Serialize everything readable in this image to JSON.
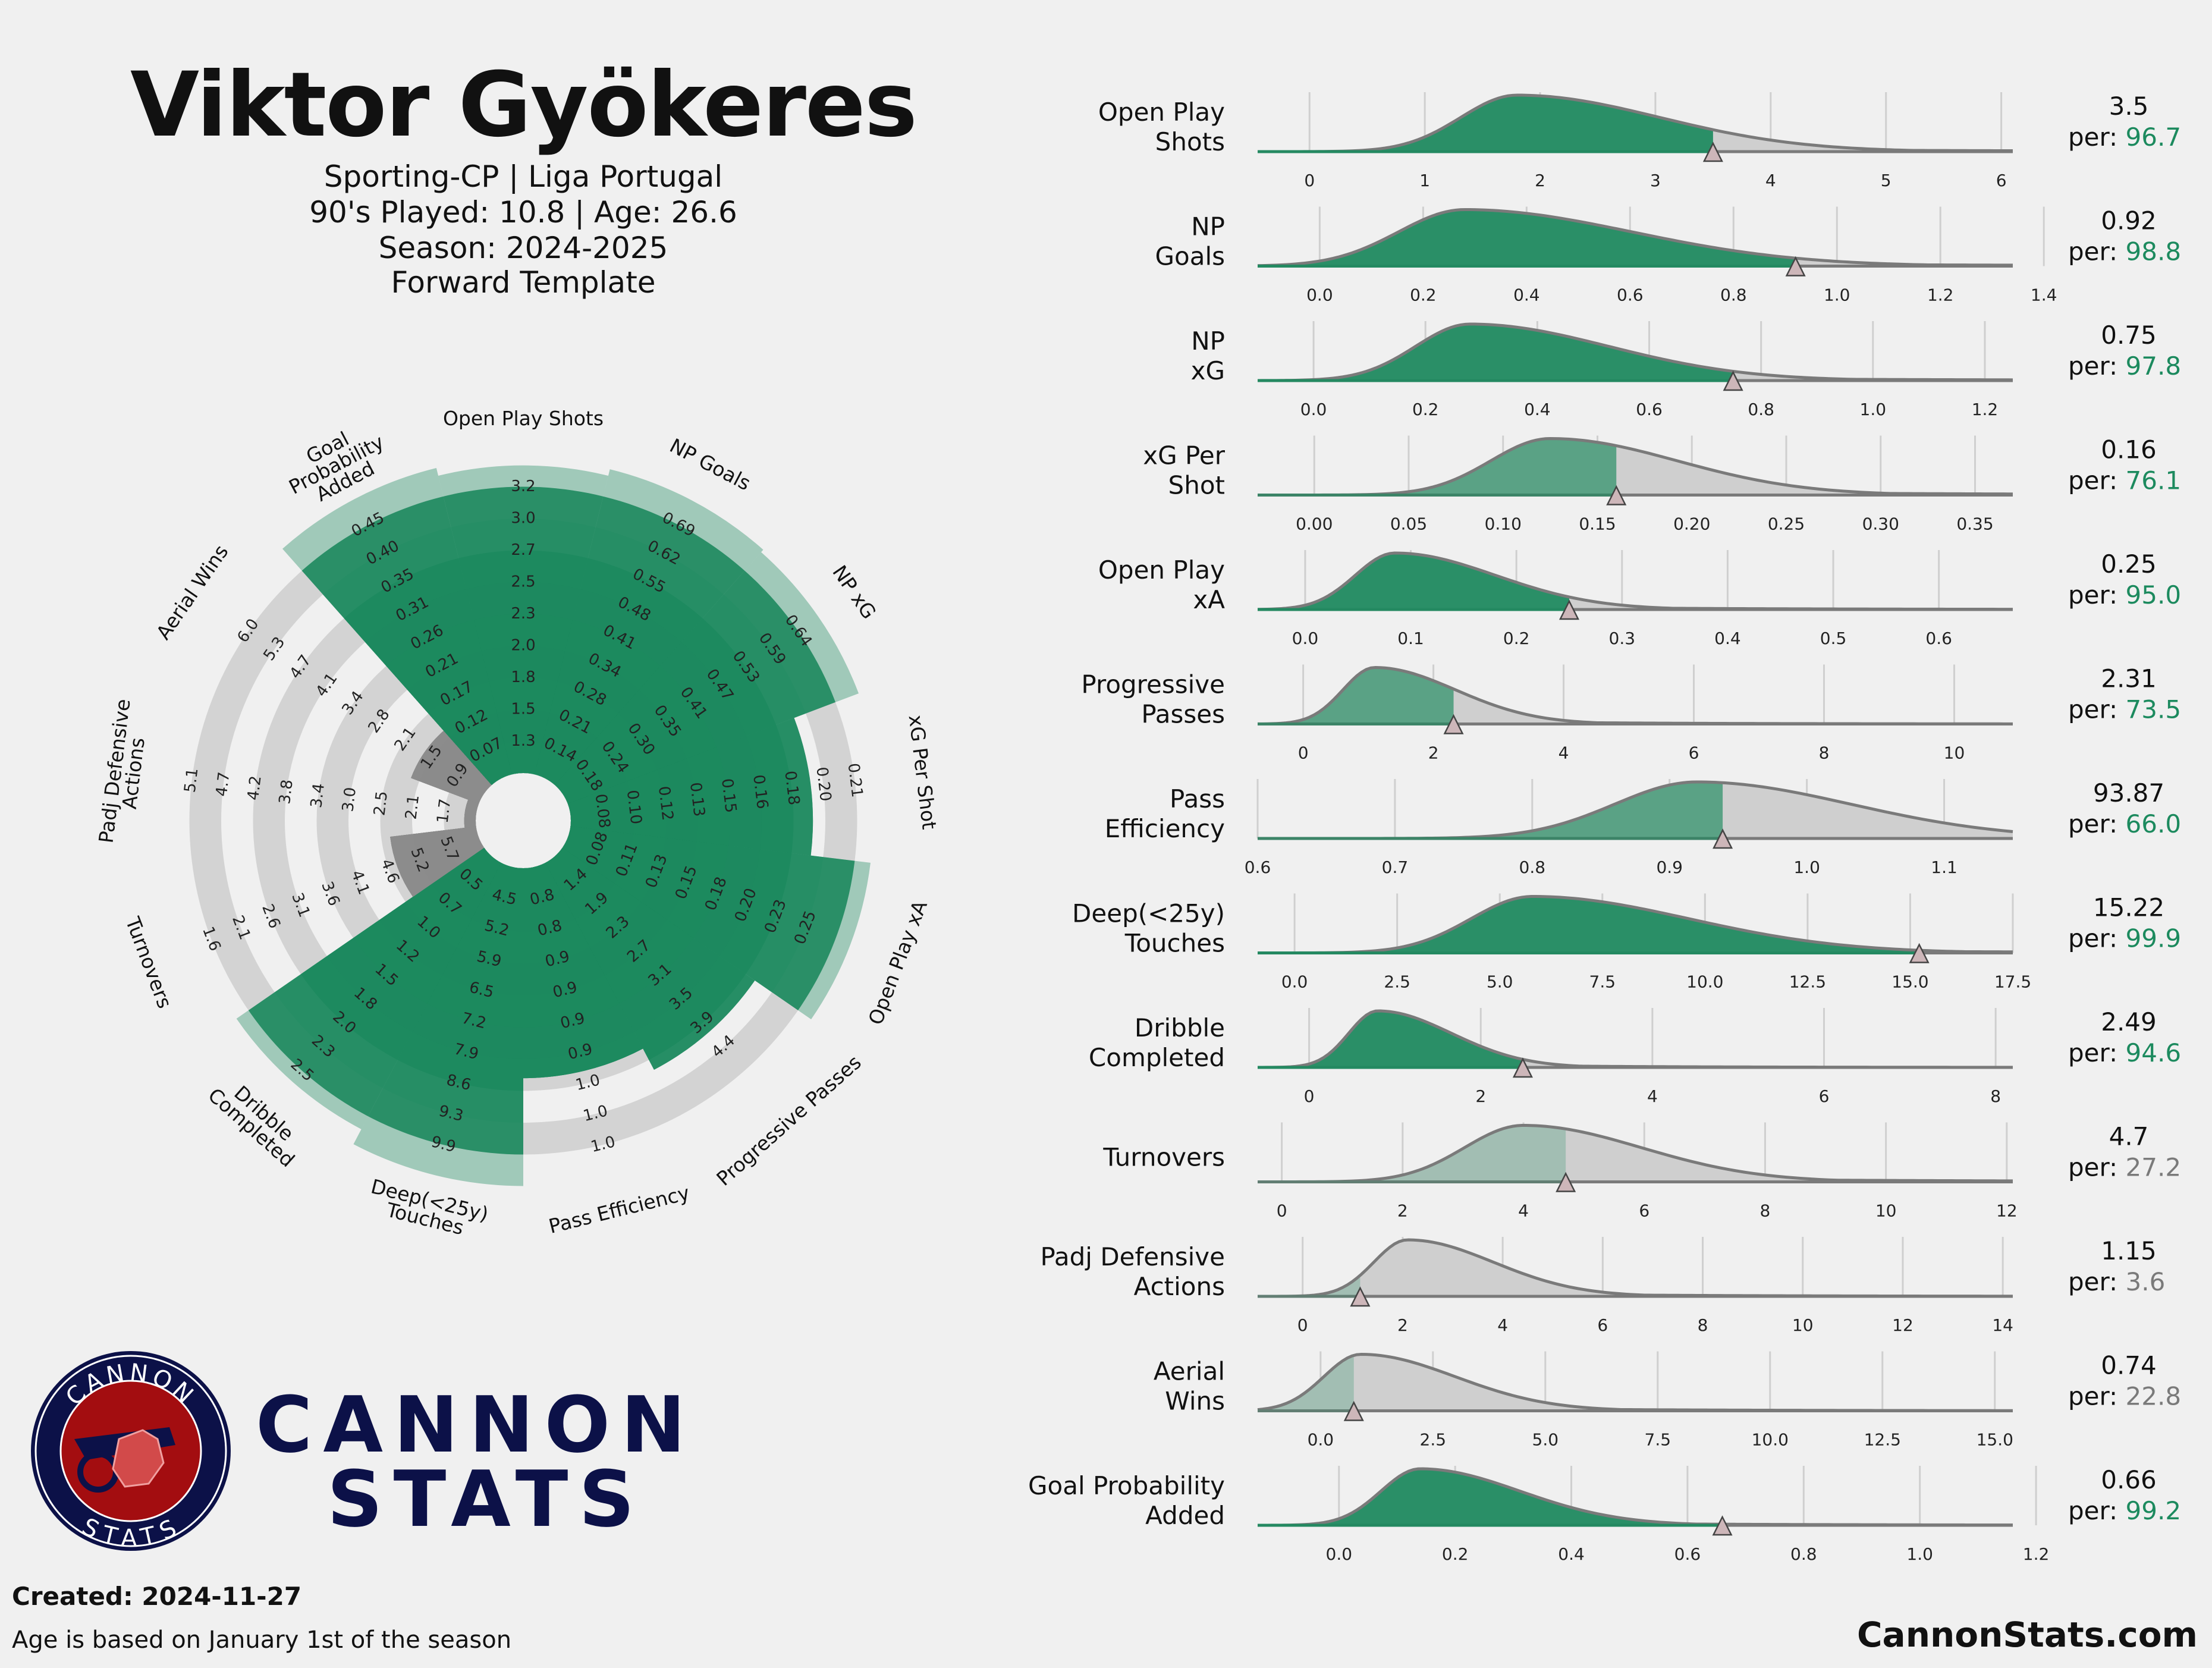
{
  "header": {
    "player": "Viktor Gyökeres",
    "line1": "Sporting-CP | Liga Portugal",
    "line2": "90's Played: 10.8 | Age: 26.6",
    "line3": "Season: 2024-2025",
    "line4": "Forward Template"
  },
  "brand": {
    "word1": "CANNON",
    "word2": "STATS",
    "badge_top": "CANNON",
    "badge_bottom": "STATS",
    "navy": "#0c1148",
    "red": "#a30d10"
  },
  "footer": {
    "created": "Created: 2024-11-27",
    "note": "Age is based on January 1st of the season",
    "site": "CannonStats.com"
  },
  "colors": {
    "good": "#1c8a5e",
    "neutral": "#8c8c8c",
    "ring": "#d3d3d3",
    "marker": "#cdb6b9"
  },
  "chart_data": [
    {
      "type": "radar",
      "percentile_scale": [
        0,
        100
      ],
      "axes": [
        {
          "label": "Open Play Shots",
          "percentile": 96.7,
          "ticks": [
            "1.3",
            "1.5",
            "1.8",
            "2.0",
            "2.3",
            "2.5",
            "2.7",
            "3.0",
            "3.2"
          ]
        },
        {
          "label": "NP Goals",
          "percentile": 98.8,
          "ticks": [
            "0.14",
            "0.21",
            "0.28",
            "0.34",
            "0.41",
            "0.48",
            "0.55",
            "0.62",
            "0.69"
          ]
        },
        {
          "label": "NP xG",
          "percentile": 97.8,
          "ticks": [
            "0.18",
            "0.24",
            "0.30",
            "0.35",
            "0.41",
            "0.47",
            "0.53",
            "0.59",
            "0.64"
          ]
        },
        {
          "label": "xG Per Shot",
          "percentile": 76.1,
          "ticks": [
            "0.08",
            "0.10",
            "0.12",
            "0.13",
            "0.15",
            "0.16",
            "0.18",
            "0.20",
            "0.21"
          ]
        },
        {
          "label": "Open Play xA",
          "percentile": 95.0,
          "ticks": [
            "0.08",
            "0.11",
            "0.13",
            "0.15",
            "0.18",
            "0.20",
            "0.23",
            "0.25"
          ]
        },
        {
          "label": "Progressive Passes",
          "percentile": 73.5,
          "ticks": [
            "1.4",
            "1.9",
            "2.3",
            "2.7",
            "3.1",
            "3.5",
            "3.9",
            "4.4"
          ]
        },
        {
          "label": "Pass Efficiency",
          "percentile": 66.0,
          "ticks": [
            "0.8",
            "0.8",
            "0.9",
            "0.9",
            "0.9",
            "0.9",
            "1.0",
            "1.0",
            "1.0"
          ]
        },
        {
          "label": "Deep(<25y)\nTouches",
          "percentile": 99.9,
          "ticks": [
            "4.5",
            "5.2",
            "5.9",
            "6.5",
            "7.2",
            "7.9",
            "8.6",
            "9.3",
            "9.9"
          ]
        },
        {
          "label": "Dribble\nCompleted",
          "percentile": 94.6,
          "ticks": [
            "0.5",
            "0.7",
            "1.0",
            "1.2",
            "1.5",
            "1.8",
            "2.0",
            "2.3",
            "2.5"
          ]
        },
        {
          "label": "Turnovers",
          "percentile": 27.2,
          "ticks": [
            "5.7",
            "5.2",
            "4.6",
            "4.1",
            "3.6",
            "3.1",
            "2.6",
            "2.1",
            "1.6"
          ]
        },
        {
          "label": "Padj Defensive\nActions",
          "percentile": 3.6,
          "ticks": [
            "1.7",
            "2.1",
            "2.5",
            "3.0",
            "3.4",
            "3.8",
            "4.2",
            "4.7",
            "5.1"
          ]
        },
        {
          "label": "Aerial Wins",
          "percentile": 22.8,
          "ticks": [
            "0.9",
            "1.5",
            "2.1",
            "2.8",
            "3.4",
            "4.1",
            "4.7",
            "5.3",
            "6.0"
          ]
        },
        {
          "label": "Goal\nProbability\nAdded",
          "percentile": 99.2,
          "ticks": [
            "0.07",
            "0.12",
            "0.17",
            "0.21",
            "0.26",
            "0.31",
            "0.35",
            "0.40",
            "0.45"
          ]
        }
      ]
    },
    {
      "type": "area",
      "metrics": [
        {
          "label": "Open Play\nShots",
          "value": "3.5",
          "percentile": "96.7",
          "x": 3.5,
          "peak": 1.8,
          "width": 0.65,
          "skew": 0.9,
          "xlim": [
            -0.45,
            6.1
          ],
          "xticks": [
            "0",
            "1",
            "2",
            "3",
            "4",
            "5",
            "6"
          ]
        },
        {
          "label": "NP\nGoals",
          "value": "0.92",
          "percentile": "98.8",
          "x": 0.92,
          "peak": 0.28,
          "width": 0.17,
          "skew": 0.9,
          "xlim": [
            -0.12,
            1.34
          ],
          "xticks": [
            "0.0",
            "0.2",
            "0.4",
            "0.6",
            "0.8",
            "1.0",
            "1.2",
            "1.4"
          ]
        },
        {
          "label": "NP\nxG",
          "value": "0.75",
          "percentile": "97.8",
          "x": 0.75,
          "peak": 0.28,
          "width": 0.13,
          "skew": 0.9,
          "xlim": [
            -0.1,
            1.25
          ],
          "xticks": [
            "0.0",
            "0.2",
            "0.4",
            "0.6",
            "0.8",
            "1.0",
            "1.2"
          ]
        },
        {
          "label": "xG Per\nShot",
          "value": "0.16",
          "percentile": "76.1",
          "x": 0.16,
          "peak": 0.125,
          "width": 0.042,
          "skew": 0.6,
          "xlim": [
            -0.03,
            0.37
          ],
          "xticks": [
            "0.00",
            "0.05",
            "0.10",
            "0.15",
            "0.20",
            "0.25",
            "0.30",
            "0.35"
          ]
        },
        {
          "label": "Open Play\nxA",
          "value": "0.25",
          "percentile": "95.0",
          "x": 0.25,
          "peak": 0.085,
          "width": 0.05,
          "skew": 0.9,
          "xlim": [
            -0.045,
            0.67
          ],
          "xticks": [
            "0.0",
            "0.1",
            "0.2",
            "0.3",
            "0.4",
            "0.5",
            "0.6"
          ]
        },
        {
          "label": "Progressive\nPasses",
          "value": "2.31",
          "percentile": "73.5",
          "x": 2.31,
          "peak": 1.1,
          "width": 0.65,
          "skew": 0.9,
          "xlim": [
            -0.7,
            10.9
          ],
          "xticks": [
            "0",
            "2",
            "4",
            "6",
            "8",
            "10"
          ]
        },
        {
          "label": "Pass\nEfficiency",
          "value": "93.87",
          "percentile": "66.0",
          "x": 0.9387,
          "peak": 0.92,
          "width": 0.08,
          "skew": 0.4,
          "xlim": [
            0.6,
            1.15
          ],
          "xticks": [
            "0.6",
            "0.7",
            "0.8",
            "0.9",
            "1.0",
            "1.1"
          ]
        },
        {
          "label": "Deep(<25y)\nTouches",
          "value": "15.22",
          "percentile": "99.9",
          "x": 15.22,
          "peak": 5.8,
          "width": 2.0,
          "skew": 0.9,
          "xlim": [
            -0.9,
            17.5
          ],
          "xticks": [
            "0.0",
            "2.5",
            "5.0",
            "7.5",
            "10.0",
            "12.5",
            "15.0",
            "17.5"
          ]
        },
        {
          "label": "Dribble\nCompleted",
          "value": "2.49",
          "percentile": "94.6",
          "x": 2.49,
          "peak": 0.8,
          "width": 0.45,
          "skew": 0.9,
          "xlim": [
            -0.6,
            8.2
          ],
          "xticks": [
            "0",
            "2",
            "4",
            "6",
            "8"
          ]
        },
        {
          "label": "Turnovers",
          "value": "4.7",
          "percentile": "27.2",
          "x": 4.7,
          "peak": 4.0,
          "width": 1.3,
          "skew": 0.5,
          "xlim": [
            -0.4,
            12.1
          ],
          "xticks": [
            "0",
            "2",
            "4",
            "6",
            "8",
            "10",
            "12"
          ]
        },
        {
          "label": "Padj Defensive\nActions",
          "value": "1.15",
          "percentile": "3.6",
          "x": 1.15,
          "peak": 2.1,
          "width": 0.9,
          "skew": 0.9,
          "xlim": [
            -0.9,
            14.2
          ],
          "xticks": [
            "0",
            "2",
            "4",
            "6",
            "8",
            "10",
            "12",
            "14"
          ]
        },
        {
          "label": "Aerial\nWins",
          "value": "0.74",
          "percentile": "22.8",
          "x": 0.74,
          "peak": 0.9,
          "width": 1.1,
          "skew": 0.9,
          "xlim": [
            -1.4,
            15.4
          ],
          "xticks": [
            "0.0",
            "2.5",
            "5.0",
            "7.5",
            "10.0",
            "12.5",
            "15.0"
          ]
        },
        {
          "label": "Goal Probability\nAdded",
          "value": "0.66",
          "percentile": "99.2",
          "x": 0.66,
          "peak": 0.14,
          "width": 0.09,
          "skew": 0.9,
          "xlim": [
            -0.14,
            1.16
          ],
          "xticks": [
            "0.0",
            "0.2",
            "0.4",
            "0.6",
            "0.8",
            "1.0",
            "1.2"
          ]
        }
      ],
      "percentile_prefix": "per:"
    }
  ]
}
